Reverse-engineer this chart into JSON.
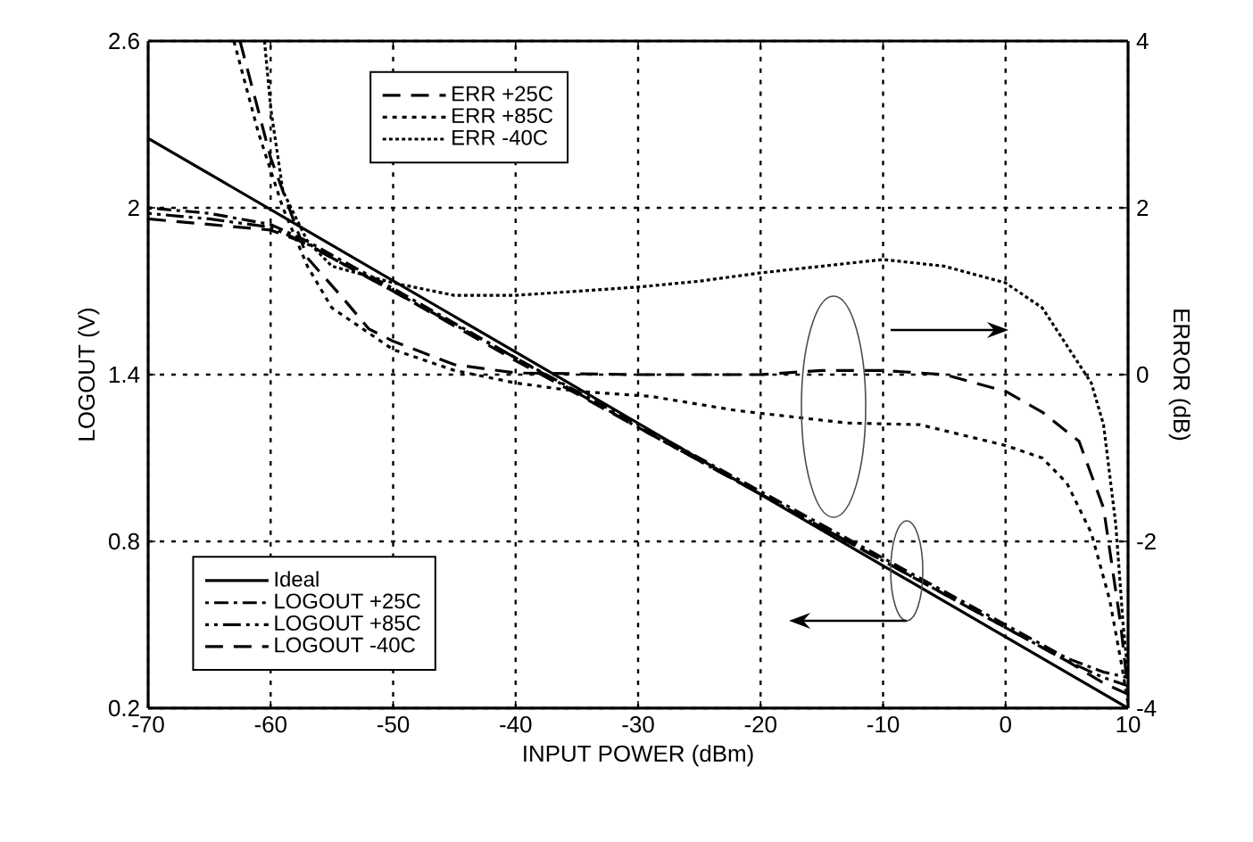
{
  "chart_data": {
    "type": "line",
    "xlabel": "INPUT POWER (dBm)",
    "ylabel": "LOGOUT (V)",
    "y2label": "ERROR (dB)",
    "xlim": [
      -70,
      10
    ],
    "xticks": [
      -70,
      -60,
      -50,
      -40,
      -30,
      -20,
      -10,
      0,
      10
    ],
    "ylim": [
      0.2,
      2.6
    ],
    "yticks": [
      0.2,
      0.8,
      1.4,
      2,
      2.6
    ],
    "y2lim": [
      -4,
      4
    ],
    "y2ticks": [
      -4,
      -2,
      0,
      2,
      4
    ],
    "grid": true,
    "legend": "top",
    "marker": "none",
    "series": [
      {
        "name": "Ideal",
        "color": "#000000",
        "line_style": "solid",
        "x": [
          -70,
          10
        ],
        "values": [
          2.25,
          0.2
        ]
      },
      {
        "name": "LOGOUT +25C",
        "color": "#000000",
        "line_style": "dashed",
        "x": [
          -70,
          -65,
          -60,
          -57,
          -55,
          -50,
          -40,
          -30,
          -20,
          -10,
          0,
          5,
          8,
          10
        ],
        "values": [
          2.0,
          1.98,
          1.94,
          1.88,
          1.83,
          1.71,
          1.46,
          1.22,
          0.98,
          0.74,
          0.5,
          0.38,
          0.33,
          0.31
        ]
      },
      {
        "name": "LOGOUT +85C",
        "color": "#000000",
        "line_style": "dashed",
        "x": [
          -70,
          -65,
          -60,
          -57,
          -55,
          -50,
          -40,
          -30,
          -20,
          -10,
          0,
          5,
          8,
          10
        ],
        "values": [
          1.98,
          1.96,
          1.93,
          1.87,
          1.82,
          1.7,
          1.46,
          1.21,
          0.97,
          0.73,
          0.49,
          0.37,
          0.31,
          0.28
        ]
      },
      {
        "name": "LOGOUT  -40C",
        "color": "#000000",
        "line_style": "dashed",
        "x": [
          -70,
          -65,
          -60,
          -57,
          -55,
          -50,
          -40,
          -30,
          -20,
          -10,
          0,
          5,
          8,
          10
        ],
        "values": [
          1.96,
          1.94,
          1.92,
          1.87,
          1.82,
          1.7,
          1.45,
          1.21,
          0.97,
          0.73,
          0.49,
          0.37,
          0.29,
          0.25
        ]
      },
      {
        "name": "ERR +25C",
        "color": "#000000",
        "line_style": "dashed",
        "axis": "y2",
        "x": [
          -62.5,
          -60,
          -57,
          -54,
          -52,
          -50,
          -45,
          -40,
          -30,
          -20,
          -15,
          -10,
          -5,
          0,
          3,
          6,
          8,
          9.4,
          10
        ],
        "values": [
          4,
          2.6,
          1.4,
          0.9,
          0.55,
          0.4,
          0.12,
          0.02,
          0,
          0,
          0.05,
          0.05,
          0,
          -0.2,
          -0.45,
          -0.8,
          -1.6,
          -3,
          -3.8
        ]
      },
      {
        "name": "ERR +85C",
        "color": "#000000",
        "line_style": "dotted",
        "axis": "y2",
        "x": [
          -63,
          -61,
          -59,
          -57,
          -55,
          -50,
          -45,
          -40,
          -35,
          -29,
          -22,
          -13,
          -7,
          0,
          3,
          5,
          7,
          8.5,
          9.5,
          10
        ],
        "values": [
          4,
          2.9,
          2,
          1.3,
          0.8,
          0.3,
          0.05,
          -0.1,
          -0.2,
          -0.26,
          -0.43,
          -0.58,
          -0.6,
          -0.85,
          -1,
          -1.3,
          -1.9,
          -2.7,
          -3.5,
          -3.95
        ]
      },
      {
        "name": "ERR  -40C",
        "color": "#000000",
        "line_style": "dotted",
        "axis": "y2",
        "x": [
          -60.5,
          -60,
          -59,
          -57,
          -55,
          -50,
          -45,
          -40,
          -35,
          -30,
          -25,
          -20,
          -15,
          -10,
          -5,
          0,
          3,
          5,
          7,
          8,
          9,
          9.6,
          10
        ],
        "values": [
          4,
          3.2,
          2.2,
          1.6,
          1.3,
          1.1,
          0.95,
          0.95,
          1,
          1.05,
          1.12,
          1.22,
          1.3,
          1.38,
          1.3,
          1.1,
          0.8,
          0.35,
          -0.1,
          -0.6,
          -1.8,
          -3,
          -3.6
        ]
      }
    ]
  }
}
